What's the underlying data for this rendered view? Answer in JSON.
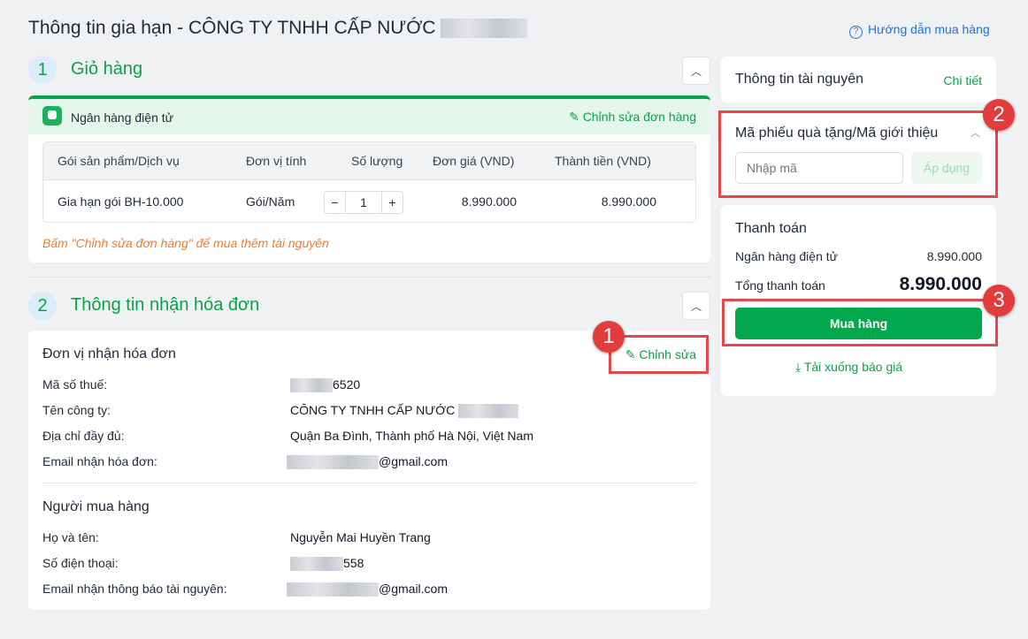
{
  "header": {
    "title": "Thông tin gia hạn - CÔNG TY TNHH CẤP NƯỚC",
    "help_link": "Hướng dẫn mua hàng"
  },
  "cart": {
    "step": "1",
    "title": "Giỏ hàng",
    "payment_method": "Ngân hàng điện tử",
    "edit_order": "Chỉnh sửa đơn hàng",
    "columns": [
      "Gói sản phẩm/Dịch vụ",
      "Đơn vị tính",
      "Số lượng",
      "Đơn giá (VND)",
      "Thành tiền (VND)"
    ],
    "rows": [
      {
        "product": "Gia hạn gói BH-10.000",
        "unit": "Gói/Năm",
        "quantity": "1",
        "price": "8.990.000",
        "total": "8.990.000"
      }
    ],
    "note": "Bấm \"Chỉnh sửa đơn hàng\" để mua thêm tài nguyên"
  },
  "invoice": {
    "step": "2",
    "title": "Thông tin nhận hóa đơn",
    "unit_title": "Đơn vị nhận hóa đơn",
    "edit": "Chỉnh sửa",
    "fields": [
      {
        "label": "Mã số thuế:",
        "value": "6520"
      },
      {
        "label": "Tên công ty:",
        "value": "CÔNG TY TNHH CẤP NƯỚC"
      },
      {
        "label": "Địa chỉ đầy đủ:",
        "value": "Quận Ba Đình, Thành phố Hà Nội, Việt Nam"
      },
      {
        "label": "Email nhận hóa đơn:",
        "value": "@gmail.com"
      }
    ],
    "buyer_title": "Người mua hàng",
    "buyer": [
      {
        "label": "Họ và tên:",
        "value": "Nguyễn Mai Huyền Trang"
      },
      {
        "label": "Số điện thoại:",
        "value": "558"
      },
      {
        "label": "Email nhận thông báo tài nguyên:",
        "value": "@gmail.com"
      }
    ]
  },
  "sidebar": {
    "resource_title": "Thông tin tài nguyên",
    "resource_detail": "Chi tiết",
    "voucher_title": "Mã phiếu quà tặng/Mã giới thiệu",
    "voucher_placeholder": "Nhập mã",
    "voucher_apply": "Áp dụng",
    "payment_title": "Thanh toán",
    "payment_method": "Ngân hàng điện tử",
    "payment_amount": "8.990.000",
    "total_label": "Tổng thanh toán",
    "total_amount": "8.990.000",
    "buy": "Mua hàng",
    "download": "Tải xuống báo giá"
  },
  "annotations": [
    "1",
    "2",
    "3"
  ],
  "colors": {
    "accent": "#0aa14a",
    "annotation": "#e23c3c",
    "note": "#f07c2a",
    "link": "#1a73e8"
  }
}
